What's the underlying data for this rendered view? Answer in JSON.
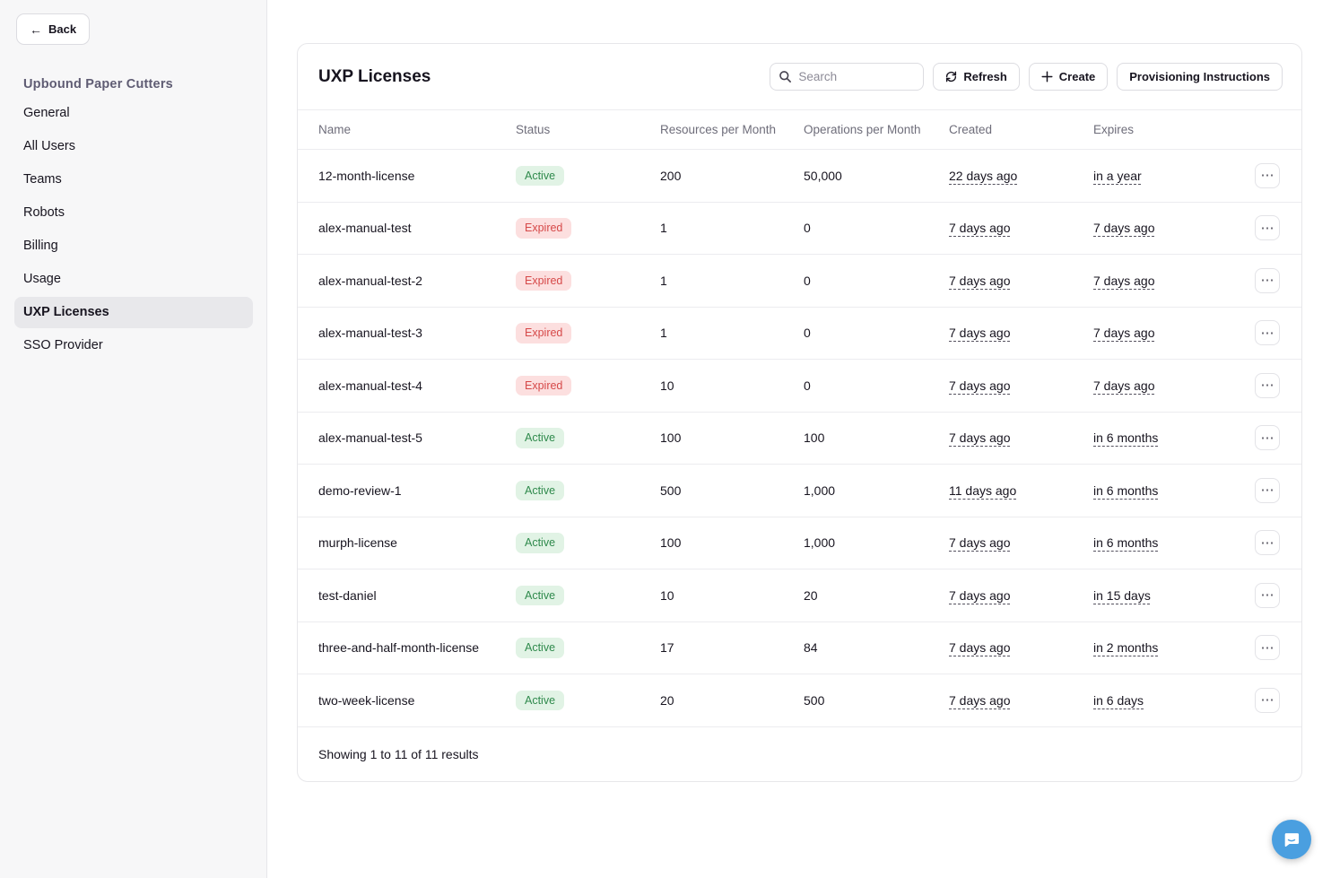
{
  "sidebar": {
    "back_label": "Back",
    "org_title": "Upbound Paper Cutters",
    "items": [
      {
        "label": "General",
        "active": false
      },
      {
        "label": "All Users",
        "active": false
      },
      {
        "label": "Teams",
        "active": false
      },
      {
        "label": "Robots",
        "active": false
      },
      {
        "label": "Billing",
        "active": false
      },
      {
        "label": "Usage",
        "active": false
      },
      {
        "label": "UXP Licenses",
        "active": true
      },
      {
        "label": "SSO Provider",
        "active": false
      }
    ]
  },
  "main": {
    "title": "UXP Licenses",
    "toolbar": {
      "search_placeholder": "Search",
      "refresh_label": "Refresh",
      "create_label": "Create",
      "provisioning_label": "Provisioning Instructions"
    },
    "table": {
      "columns": [
        "Name",
        "Status",
        "Resources per Month",
        "Operations per Month",
        "Created",
        "Expires"
      ],
      "rows": [
        {
          "name": "12-month-license",
          "status": "Active",
          "resources": "200",
          "operations": "50,000",
          "created": "22 days ago",
          "expires": "in a year"
        },
        {
          "name": "alex-manual-test",
          "status": "Expired",
          "resources": "1",
          "operations": "0",
          "created": "7 days ago",
          "expires": "7 days ago"
        },
        {
          "name": "alex-manual-test-2",
          "status": "Expired",
          "resources": "1",
          "operations": "0",
          "created": "7 days ago",
          "expires": "7 days ago"
        },
        {
          "name": "alex-manual-test-3",
          "status": "Expired",
          "resources": "1",
          "operations": "0",
          "created": "7 days ago",
          "expires": "7 days ago"
        },
        {
          "name": "alex-manual-test-4",
          "status": "Expired",
          "resources": "10",
          "operations": "0",
          "created": "7 days ago",
          "expires": "7 days ago"
        },
        {
          "name": "alex-manual-test-5",
          "status": "Active",
          "resources": "100",
          "operations": "100",
          "created": "7 days ago",
          "expires": "in 6 months"
        },
        {
          "name": "demo-review-1",
          "status": "Active",
          "resources": "500",
          "operations": "1,000",
          "created": "11 days ago",
          "expires": "in 6 months"
        },
        {
          "name": "murph-license",
          "status": "Active",
          "resources": "100",
          "operations": "1,000",
          "created": "7 days ago",
          "expires": "in 6 months"
        },
        {
          "name": "test-daniel",
          "status": "Active",
          "resources": "10",
          "operations": "20",
          "created": "7 days ago",
          "expires": "in 15 days"
        },
        {
          "name": "three-and-half-month-license",
          "status": "Active",
          "resources": "17",
          "operations": "84",
          "created": "7 days ago",
          "expires": "in 2 months"
        },
        {
          "name": "two-week-license",
          "status": "Active",
          "resources": "20",
          "operations": "500",
          "created": "7 days ago",
          "expires": "in 6 days"
        }
      ],
      "row_menu_icon": "⋯",
      "footer": "Showing 1 to 11 of 11 results"
    }
  },
  "icons": {
    "back_arrow": "←",
    "search": "search-icon",
    "refresh": "refresh-icon",
    "create_plus": "plus-icon",
    "row_menu": "ellipsis-icon",
    "chat": "chat-messenger-icon"
  },
  "colors": {
    "active_badge_bg": "#e1f3e5",
    "active_badge_text": "#2f8a4c",
    "expired_badge_bg": "#fcdfdf",
    "expired_badge_text": "#d64949",
    "chat_bubble": "#4a9fe0",
    "sidebar_bg": "#f7f7f8",
    "active_nav_bg": "#e8e8eb"
  }
}
